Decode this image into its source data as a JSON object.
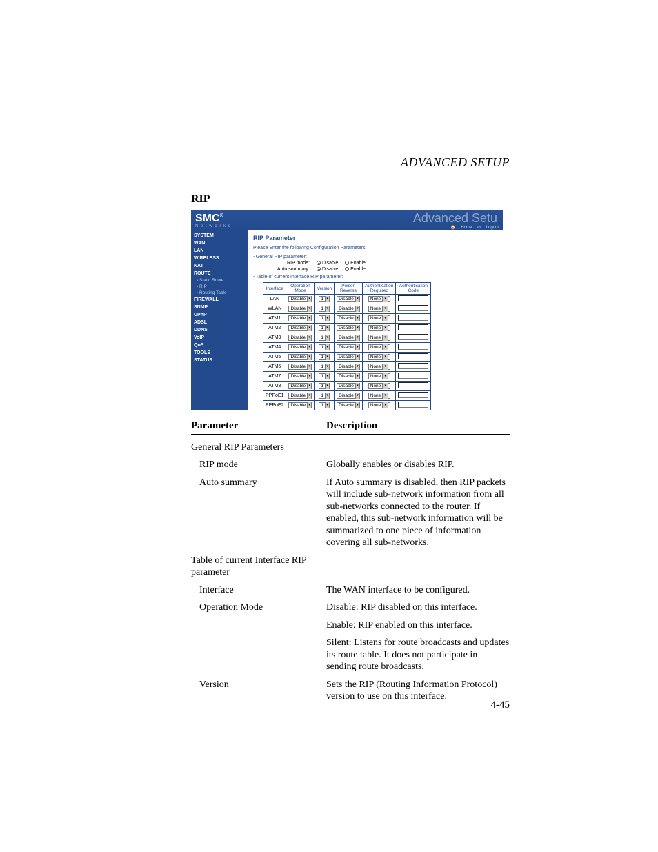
{
  "header": {
    "title": "ADVANCED SETUP"
  },
  "section_title": "RIP",
  "page_number": "4-45",
  "router": {
    "logo": "SMC",
    "logo_sup": "®",
    "logo_sub": "N e t w o r k s",
    "banner_title": "Advanced Setu",
    "links": {
      "home": "Home",
      "logout": "Logout"
    },
    "sidebar_items": [
      {
        "label": "SYSTEM",
        "type": "main"
      },
      {
        "label": "WAN",
        "type": "main"
      },
      {
        "label": "LAN",
        "type": "main"
      },
      {
        "label": "WIRELESS",
        "type": "main"
      },
      {
        "label": "NAT",
        "type": "main"
      },
      {
        "label": "ROUTE",
        "type": "main"
      },
      {
        "label": "Static Route",
        "type": "sub"
      },
      {
        "label": "RIP",
        "type": "sub"
      },
      {
        "label": "Routing Table",
        "type": "sub"
      },
      {
        "label": "FIREWALL",
        "type": "main"
      },
      {
        "label": "SNMP",
        "type": "main"
      },
      {
        "label": "UPnP",
        "type": "main"
      },
      {
        "label": "ADSL",
        "type": "main"
      },
      {
        "label": "DDNS",
        "type": "main"
      },
      {
        "label": "VoIP",
        "type": "main"
      },
      {
        "label": "QoS",
        "type": "main"
      },
      {
        "label": "TOOLS",
        "type": "main"
      },
      {
        "label": "STATUS",
        "type": "main"
      }
    ],
    "content": {
      "heading": "RIP Parameter",
      "instruction": "Please Enter the following Configuration Parameters:",
      "bullet_general": "General RIP parameter:",
      "rip_mode_label": "RIP mode:",
      "auto_summary_label": "Auto summary:",
      "radio_disable": "Disable",
      "radio_enable": "Enable",
      "bullet_table": "Table of current Interface RIP parameter:",
      "columns": [
        "Interface",
        "Operation Mode",
        "Version",
        "Poison Reverse",
        "Authentication Required",
        "Authentication Code"
      ],
      "rows": [
        {
          "iface": "LAN",
          "op": "Disable",
          "ver": "1",
          "pr": "Disable",
          "auth": "None"
        },
        {
          "iface": "WLAN",
          "op": "Disable",
          "ver": "1",
          "pr": "Disable",
          "auth": "None"
        },
        {
          "iface": "ATM1",
          "op": "Disable",
          "ver": "1",
          "pr": "Disable",
          "auth": "None"
        },
        {
          "iface": "ATM2",
          "op": "Disable",
          "ver": "1",
          "pr": "Disable",
          "auth": "None"
        },
        {
          "iface": "ATM3",
          "op": "Disable",
          "ver": "1",
          "pr": "Disable",
          "auth": "None"
        },
        {
          "iface": "ATM4",
          "op": "Disable",
          "ver": "1",
          "pr": "Disable",
          "auth": "None"
        },
        {
          "iface": "ATM5",
          "op": "Disable",
          "ver": "1",
          "pr": "Disable",
          "auth": "None"
        },
        {
          "iface": "ATM6",
          "op": "Disable",
          "ver": "1",
          "pr": "Disable",
          "auth": "None"
        },
        {
          "iface": "ATM7",
          "op": "Disable",
          "ver": "1",
          "pr": "Disable",
          "auth": "None"
        },
        {
          "iface": "ATM8",
          "op": "Disable",
          "ver": "1",
          "pr": "Disable",
          "auth": "None"
        },
        {
          "iface": "PPPoE1",
          "op": "Disable",
          "ver": "1",
          "pr": "Disable",
          "auth": "None"
        },
        {
          "iface": "PPPoE2",
          "op": "Disable",
          "ver": "1",
          "pr": "Disable",
          "auth": "None"
        }
      ]
    }
  },
  "desc": {
    "col_param": "Parameter",
    "col_desc": "Description",
    "rows": [
      {
        "p": "General RIP Parameters",
        "d": "",
        "indent": false
      },
      {
        "p": "RIP mode",
        "d": "Globally enables or disables RIP.",
        "indent": true
      },
      {
        "p": "Auto summary",
        "d": "If Auto summary is disabled, then RIP packets will include sub-network information from all sub-networks connected to the router. If enabled, this sub-network information will be summarized to one piece of information covering all sub-networks.",
        "indent": true
      },
      {
        "p": "Table of current Interface RIP parameter",
        "d": "",
        "indent": false
      },
      {
        "p": "Interface",
        "d": "The WAN interface to be configured.",
        "indent": true
      },
      {
        "p": "Operation Mode",
        "d": "Disable: RIP disabled on this interface.",
        "indent": true
      },
      {
        "p": "",
        "d": "Enable: RIP enabled on this interface.",
        "indent": true
      },
      {
        "p": "",
        "d": "Silent: Listens for route broadcasts and updates its route table. It does not participate in sending route broadcasts.",
        "indent": true
      },
      {
        "p": "Version",
        "d": "Sets the RIP (Routing Information Protocol) version to use on this interface.",
        "indent": true
      }
    ]
  }
}
